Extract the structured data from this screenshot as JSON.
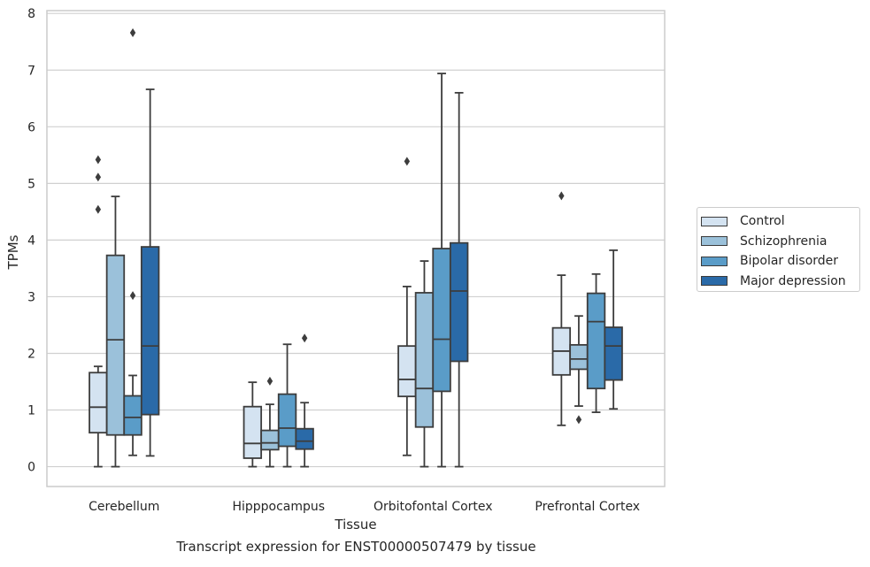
{
  "chart_data": {
    "type": "box",
    "xlabel": "Tissue",
    "ylabel": "TPMs",
    "caption": "Transcript expression for ENST00000507479 by tissue",
    "ylim": [
      -0.35,
      8.05
    ],
    "yticks": [
      0,
      1,
      2,
      3,
      4,
      5,
      6,
      7,
      8
    ],
    "grid": "horizontal",
    "legend_position": "right",
    "categories": [
      "Cerebellum",
      "Hipppocampus",
      "Orbitofontal Cortex",
      "Prefrontal Cortex"
    ],
    "series": [
      {
        "name": "Control",
        "color": "#d4e3f1",
        "boxes": [
          {
            "whislo": 0.0,
            "q1": 0.6,
            "med": 1.05,
            "q3": 1.66,
            "whishi": 1.77,
            "fliers": [
              4.54,
              5.11,
              5.42
            ]
          },
          {
            "whislo": 0.0,
            "q1": 0.15,
            "med": 0.41,
            "q3": 1.06,
            "whishi": 1.49,
            "fliers": []
          },
          {
            "whislo": 0.2,
            "q1": 1.24,
            "med": 1.54,
            "q3": 2.13,
            "whishi": 3.18,
            "fliers": [
              5.39
            ]
          },
          {
            "whislo": 0.73,
            "q1": 1.62,
            "med": 2.04,
            "q3": 2.45,
            "whishi": 3.38,
            "fliers": [
              4.78
            ]
          }
        ]
      },
      {
        "name": "Schizophrenia",
        "color": "#9bc1da",
        "boxes": [
          {
            "whislo": 0.0,
            "q1": 0.56,
            "med": 2.24,
            "q3": 3.73,
            "whishi": 4.77,
            "fliers": []
          },
          {
            "whislo": 0.0,
            "q1": 0.3,
            "med": 0.42,
            "q3": 0.64,
            "whishi": 1.1,
            "fliers": [
              1.51
            ]
          },
          {
            "whislo": 0.0,
            "q1": 0.7,
            "med": 1.38,
            "q3": 3.07,
            "whishi": 3.63,
            "fliers": []
          },
          {
            "whislo": 1.07,
            "q1": 1.72,
            "med": 1.9,
            "q3": 2.15,
            "whishi": 2.66,
            "fliers": [
              0.83
            ]
          }
        ]
      },
      {
        "name": "Bipolar disorder",
        "color": "#5a9cc8",
        "boxes": [
          {
            "whislo": 0.2,
            "q1": 0.56,
            "med": 0.87,
            "q3": 1.25,
            "whishi": 1.61,
            "fliers": [
              3.02,
              7.66
            ]
          },
          {
            "whislo": 0.0,
            "q1": 0.36,
            "med": 0.68,
            "q3": 1.28,
            "whishi": 2.16,
            "fliers": []
          },
          {
            "whislo": 0.0,
            "q1": 1.33,
            "med": 2.25,
            "q3": 3.85,
            "whishi": 6.94,
            "fliers": []
          },
          {
            "whislo": 0.96,
            "q1": 1.38,
            "med": 2.56,
            "q3": 3.06,
            "whishi": 3.4,
            "fliers": []
          }
        ]
      },
      {
        "name": "Major depression",
        "color": "#2a6aa8",
        "boxes": [
          {
            "whislo": 0.19,
            "q1": 0.92,
            "med": 2.13,
            "q3": 3.88,
            "whishi": 6.66,
            "fliers": []
          },
          {
            "whislo": 0.0,
            "q1": 0.31,
            "med": 0.45,
            "q3": 0.67,
            "whishi": 1.13,
            "fliers": [
              2.27
            ]
          },
          {
            "whislo": 0.0,
            "q1": 1.86,
            "med": 3.1,
            "q3": 3.95,
            "whishi": 6.6,
            "fliers": []
          },
          {
            "whislo": 1.02,
            "q1": 1.53,
            "med": 2.13,
            "q3": 2.46,
            "whishi": 3.82,
            "fliers": []
          }
        ]
      }
    ]
  }
}
